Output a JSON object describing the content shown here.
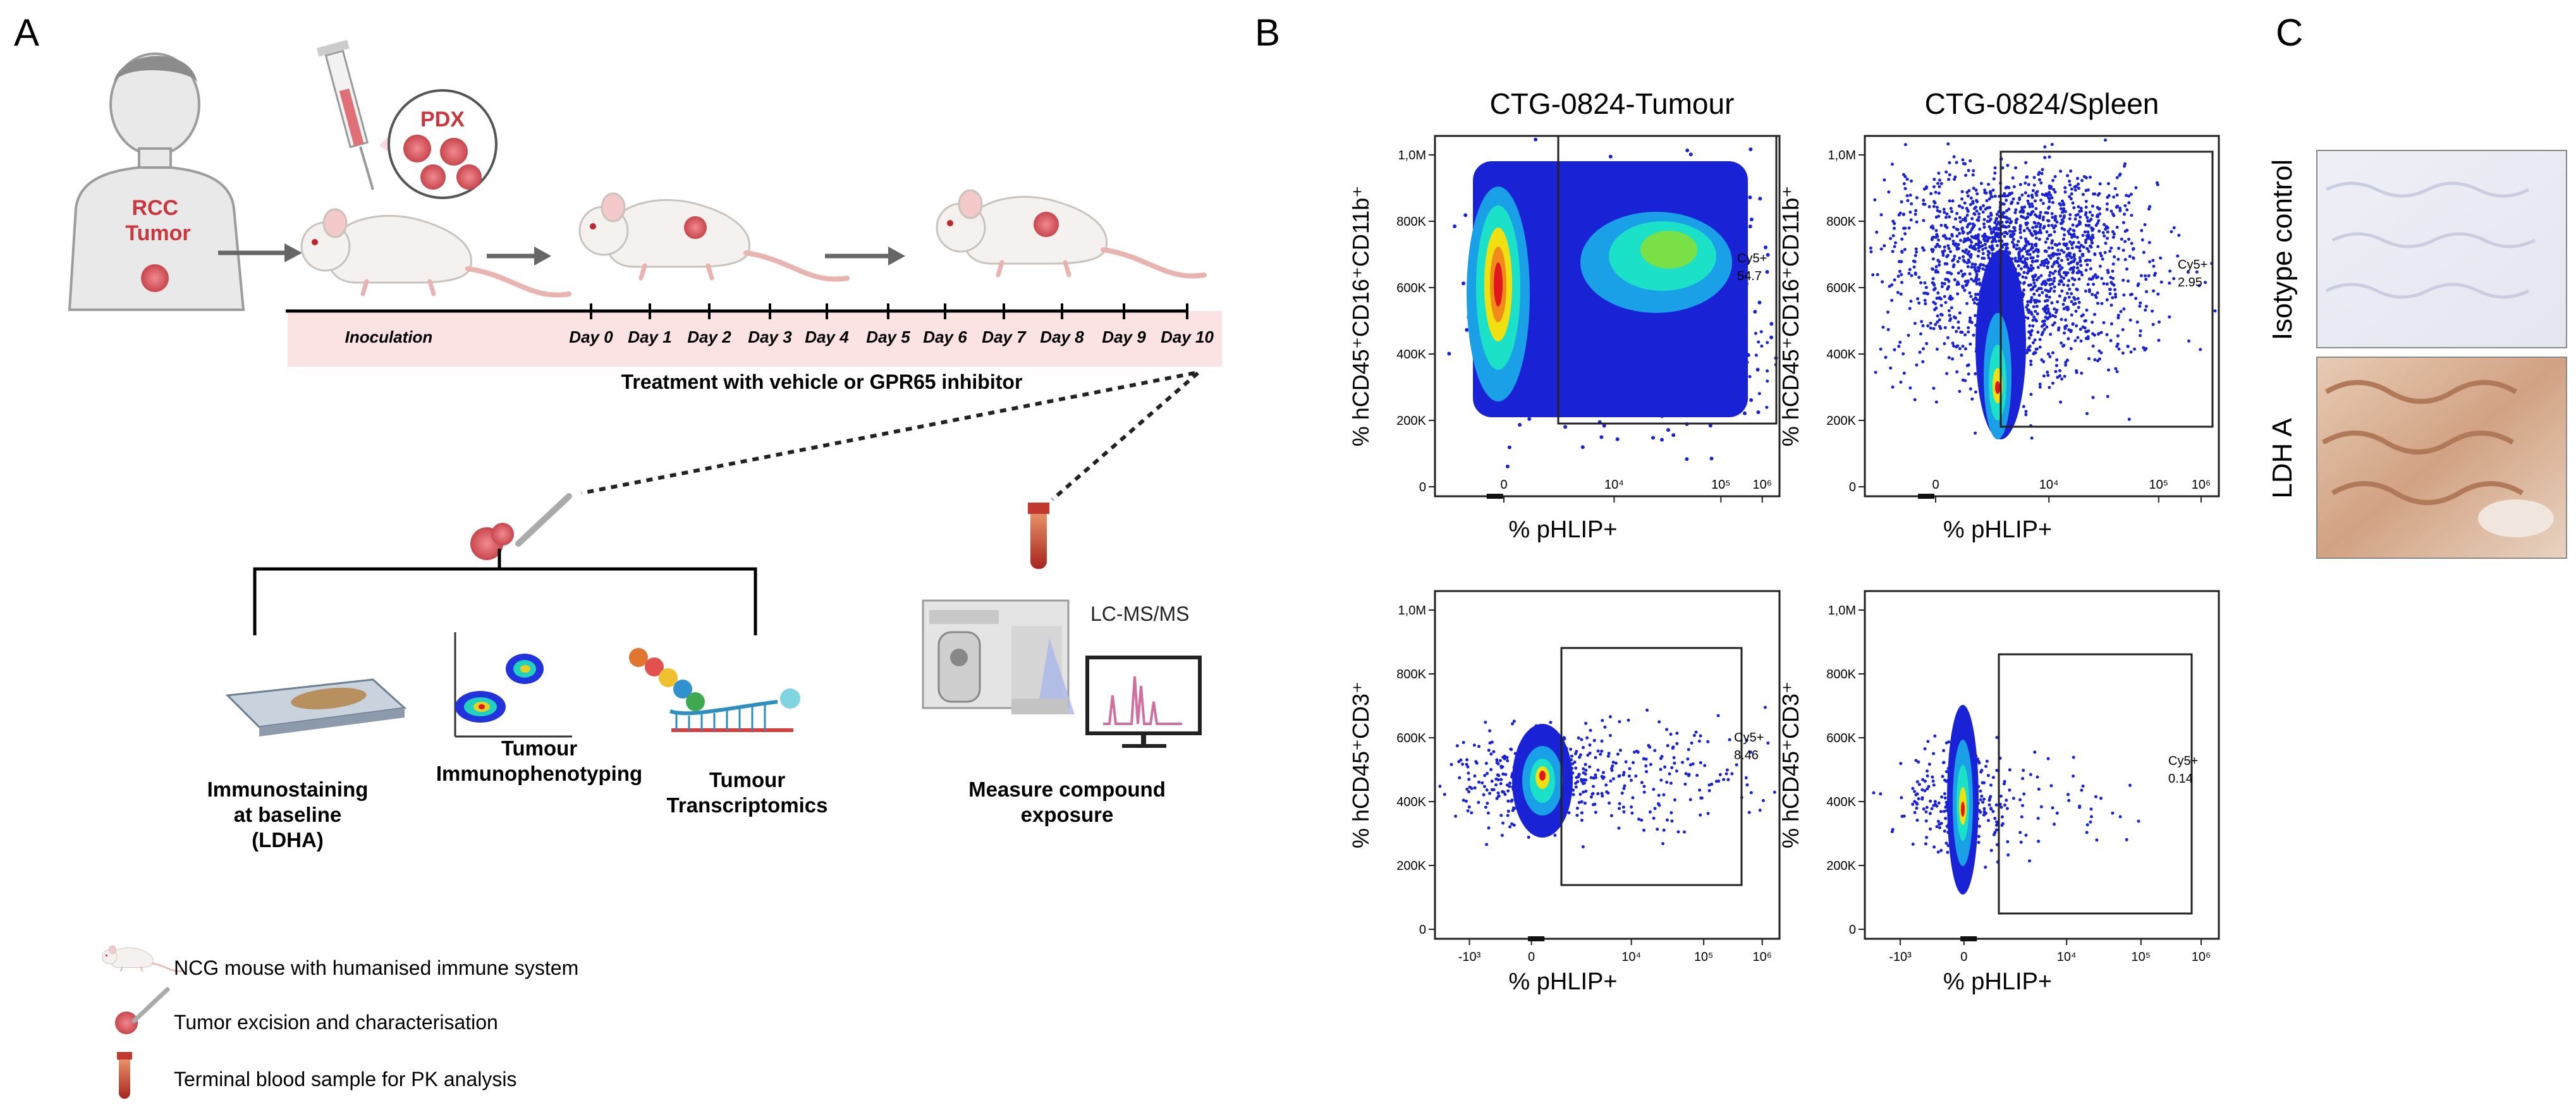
{
  "panels": {
    "A": {
      "letter": "A",
      "patient_tumor": "RCC\nTumor",
      "pdx_label": "PDX",
      "timeline_days": [
        "Inoculation",
        "Day 0",
        "Day 1",
        "Day 2",
        "Day 3",
        "Day 4",
        "Day 5",
        "Day 6",
        "Day 7",
        "Day 8",
        "Day 9",
        "Day 10"
      ],
      "treatment_label": "Treatment with vehicle or GPR65 inhibitor",
      "lcms_label": "LC-MS/MS",
      "readouts": [
        "Immunostaining\nat baseline\n(LDHA)",
        "Tumour\nImmunophenotyping",
        "Tumour\nTranscriptomics",
        "Measure compound\nexposure"
      ],
      "legend": [
        "NCG  mouse with humanised immune system",
        "Tumor excision and characterisation",
        "Terminal blood sample for PK analysis"
      ]
    },
    "B": {
      "letter": "B",
      "columns": [
        "CTG-0824-Tumour",
        "CTG-0824/Spleen"
      ],
      "plots": [
        {
          "ylabel": "% hCD45⁺CD16⁺CD11b⁺",
          "xlabel": "% pHLIP+",
          "gate": "Cy5+",
          "value": "54.7"
        },
        {
          "ylabel": "% hCD45⁺CD16⁺CD11b⁺",
          "xlabel": "% pHLIP+",
          "gate": "Cy5+",
          "value": "2.95"
        },
        {
          "ylabel": "% hCD45⁺CD3⁺",
          "xlabel": "% pHLIP+",
          "gate": "Cy5+",
          "value": "8.46"
        },
        {
          "ylabel": "% hCD45⁺CD3⁺",
          "xlabel": "% pHLIP+",
          "gate": "Cy5+",
          "value": "0.14"
        }
      ],
      "y_ticks": [
        "0",
        "200K",
        "400K",
        "600K",
        "800K",
        "1,0M"
      ],
      "x_ticks_top": [
        "0",
        "10⁴",
        "10⁵",
        "10⁶"
      ],
      "x_ticks_bottom": [
        "-10³",
        "0",
        "10⁴",
        "10⁵",
        "10⁶"
      ]
    },
    "C": {
      "letter": "C",
      "labels": [
        "Isotype control",
        "LDH A"
      ]
    }
  },
  "colors": {
    "timeline_band": "#fbe3e3",
    "scatter_low": "#1a22d6",
    "scatter_mid": "#1be1c8",
    "scatter_high": "#f0e012",
    "scatter_peak": "#e0181c",
    "mouse_body": "#f5f1ee",
    "pdx_red": "#d9575e",
    "ihc_brown": "#b98560"
  }
}
